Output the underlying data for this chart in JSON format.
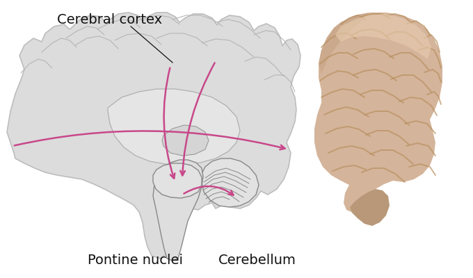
{
  "background_color": "#ffffff",
  "arrow_color": "#c8478a",
  "brain_fill": "#d9d9d9",
  "brain_edge": "#b8b8b8",
  "inner_fill": "#e8e8e8",
  "inner_edge": "#999999",
  "label_cerebral_cortex": "Cerebral cortex",
  "label_pontine": "Pontine nuclei",
  "label_cerebellum": "Cerebellum",
  "label_fontsize": 14,
  "figsize": [
    6.8,
    4.0
  ],
  "dpi": 100,
  "photo_brain_base": "#d4b49a",
  "photo_brain_mid": "#c8a882",
  "photo_brain_dark": "#b89060",
  "photo_brain_shadow": "#a07848"
}
